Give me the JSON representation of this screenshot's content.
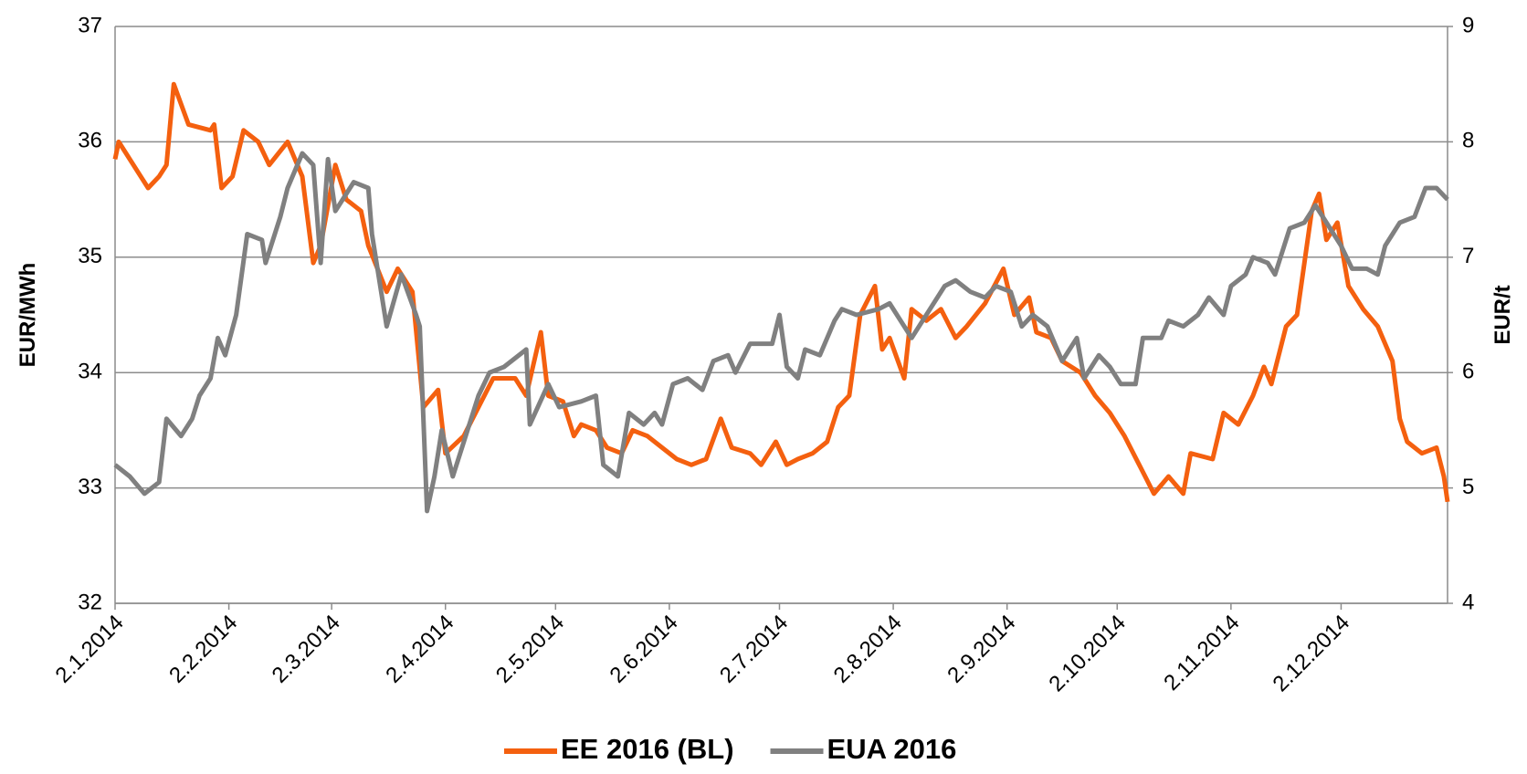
{
  "chart_data": {
    "type": "line",
    "y_label": "EUR/MWh",
    "y2_label": "EUR/t",
    "xlim": [
      "2014-01-02",
      "2014-12-31"
    ],
    "xticks": [
      {
        "value": "2014-01-02",
        "label": "2.1.2014"
      },
      {
        "value": "2014-02-02",
        "label": "2.2.2014"
      },
      {
        "value": "2014-03-02",
        "label": "2.3.2014"
      },
      {
        "value": "2014-04-02",
        "label": "2.4.2014"
      },
      {
        "value": "2014-05-02",
        "label": "2.5.2014"
      },
      {
        "value": "2014-06-02",
        "label": "2.6.2014"
      },
      {
        "value": "2014-07-02",
        "label": "2.7.2014"
      },
      {
        "value": "2014-08-02",
        "label": "2.8.2014"
      },
      {
        "value": "2014-09-02",
        "label": "2.9.2014"
      },
      {
        "value": "2014-10-02",
        "label": "2.10.2014"
      },
      {
        "value": "2014-11-02",
        "label": "2.11.2014"
      },
      {
        "value": "2014-12-02",
        "label": "2.12.2014"
      }
    ],
    "ylim": [
      32,
      37
    ],
    "yticks": [
      32,
      33,
      34,
      35,
      36,
      37
    ],
    "y2lim": [
      4,
      9
    ],
    "y2ticks": [
      4,
      5,
      6,
      7,
      8,
      9
    ],
    "grid": true,
    "legend": "bottom",
    "series": [
      {
        "name": "EE 2016 (BL)",
        "color": "#f4600f",
        "x": [
          "2014-01-02",
          "2014-01-03",
          "2014-01-09",
          "2014-01-11",
          "2014-01-14",
          "2014-01-16",
          "2014-01-18",
          "2014-01-22",
          "2014-01-28",
          "2014-01-29",
          "2014-01-31",
          "2014-02-03",
          "2014-02-06",
          "2014-02-10",
          "2014-02-13",
          "2014-02-18",
          "2014-02-22",
          "2014-02-25",
          "2014-02-27",
          "2014-03-03",
          "2014-03-06",
          "2014-03-10",
          "2014-03-12",
          "2014-03-17",
          "2014-03-20",
          "2014-03-24",
          "2014-03-27",
          "2014-03-31",
          "2014-04-02",
          "2014-04-07",
          "2014-04-11",
          "2014-04-15",
          "2014-04-21",
          "2014-04-24",
          "2014-04-28",
          "2014-04-30",
          "2014-05-04",
          "2014-05-07",
          "2014-05-09",
          "2014-05-13",
          "2014-05-16",
          "2014-05-20",
          "2014-05-23",
          "2014-05-27",
          "2014-05-31",
          "2014-06-04",
          "2014-06-08",
          "2014-06-12",
          "2014-06-16",
          "2014-06-19",
          "2014-06-24",
          "2014-06-27",
          "2014-07-01",
          "2014-07-04",
          "2014-07-07",
          "2014-07-11",
          "2014-07-15",
          "2014-07-18",
          "2014-07-21",
          "2014-07-24",
          "2014-07-28",
          "2014-07-30",
          "2014-08-01",
          "2014-08-05",
          "2014-08-07",
          "2014-08-11",
          "2014-08-15",
          "2014-08-19",
          "2014-08-22",
          "2014-08-27",
          "2014-09-01",
          "2014-09-04",
          "2014-09-08",
          "2014-09-10",
          "2014-09-14",
          "2014-09-17",
          "2014-09-22",
          "2014-09-26",
          "2014-09-30",
          "2014-10-04",
          "2014-10-08",
          "2014-10-12",
          "2014-10-16",
          "2014-10-20",
          "2014-10-22",
          "2014-10-28",
          "2014-10-31",
          "2014-11-04",
          "2014-11-08",
          "2014-11-11",
          "2014-11-13",
          "2014-11-17",
          "2014-11-20",
          "2014-11-24",
          "2014-11-26",
          "2014-11-28",
          "2014-12-01",
          "2014-12-04",
          "2014-12-08",
          "2014-12-12",
          "2014-12-16",
          "2014-12-18",
          "2014-12-20",
          "2014-12-24",
          "2014-12-28",
          "2014-12-30",
          "2014-12-31"
        ],
        "values": [
          35.85,
          36.0,
          35.7,
          35.6,
          35.7,
          35.8,
          36.5,
          36.15,
          36.1,
          36.15,
          35.6,
          35.7,
          36.1,
          36.0,
          35.8,
          36.0,
          35.7,
          34.95,
          35.1,
          35.8,
          35.5,
          35.4,
          35.1,
          34.7,
          34.9,
          34.7,
          33.7,
          33.85,
          33.3,
          33.45,
          33.7,
          33.95,
          33.95,
          33.8,
          34.35,
          33.8,
          33.75,
          33.45,
          33.55,
          33.5,
          33.35,
          33.3,
          33.5,
          33.45,
          33.35,
          33.25,
          33.2,
          33.25,
          33.6,
          33.35,
          33.3,
          33.2,
          33.4,
          33.2,
          33.25,
          33.3,
          33.4,
          33.7,
          33.8,
          34.5,
          34.75,
          34.2,
          34.3,
          33.95,
          34.55,
          34.45,
          34.55,
          34.3,
          34.4,
          34.6,
          34.9,
          34.5,
          34.65,
          34.35,
          34.3,
          34.1,
          34.0,
          33.8,
          33.65,
          33.45,
          33.2,
          32.95,
          33.1,
          32.95,
          33.3,
          33.25,
          33.65,
          33.55,
          33.8,
          34.05,
          33.9,
          34.4,
          34.5,
          35.4,
          35.55,
          35.15,
          35.3,
          34.75,
          34.55,
          34.4,
          34.1,
          33.6,
          33.4,
          33.3,
          33.35,
          33.1,
          32.88
        ]
      },
      {
        "name": "EUA 2016",
        "color": "#808080",
        "axis": "y2",
        "x": [
          "2014-01-02",
          "2014-01-06",
          "2014-01-10",
          "2014-01-14",
          "2014-01-16",
          "2014-01-20",
          "2014-01-23",
          "2014-01-25",
          "2014-01-28",
          "2014-01-30",
          "2014-02-01",
          "2014-02-04",
          "2014-02-07",
          "2014-02-11",
          "2014-02-12",
          "2014-02-16",
          "2014-02-18",
          "2014-02-22",
          "2014-02-25",
          "2014-02-27",
          "2014-03-01",
          "2014-03-03",
          "2014-03-08",
          "2014-03-12",
          "2014-03-13",
          "2014-03-17",
          "2014-03-21",
          "2014-03-25",
          "2014-03-26",
          "2014-03-28",
          "2014-03-30",
          "2014-04-01",
          "2014-04-04",
          "2014-04-08",
          "2014-04-11",
          "2014-04-14",
          "2014-04-18",
          "2014-04-24",
          "2014-04-25",
          "2014-04-30",
          "2014-05-03",
          "2014-05-09",
          "2014-05-13",
          "2014-05-15",
          "2014-05-19",
          "2014-05-22",
          "2014-05-26",
          "2014-05-29",
          "2014-05-31",
          "2014-06-03",
          "2014-06-07",
          "2014-06-11",
          "2014-06-14",
          "2014-06-18",
          "2014-06-20",
          "2014-06-24",
          "2014-06-30",
          "2014-07-02",
          "2014-07-04",
          "2014-07-07",
          "2014-07-09",
          "2014-07-13",
          "2014-07-17",
          "2014-07-19",
          "2014-07-23",
          "2014-07-29",
          "2014-08-01",
          "2014-08-07",
          "2014-08-12",
          "2014-08-16",
          "2014-08-19",
          "2014-08-23",
          "2014-08-27",
          "2014-08-30",
          "2014-09-03",
          "2014-09-06",
          "2014-09-09",
          "2014-09-13",
          "2014-09-17",
          "2014-09-21",
          "2014-09-23",
          "2014-09-27",
          "2014-09-30",
          "2014-10-03",
          "2014-10-07",
          "2014-10-09",
          "2014-10-14",
          "2014-10-16",
          "2014-10-20",
          "2014-10-24",
          "2014-10-27",
          "2014-10-31",
          "2014-11-02",
          "2014-11-06",
          "2014-11-08",
          "2014-11-12",
          "2014-11-14",
          "2014-11-18",
          "2014-11-22",
          "2014-11-25",
          "2014-11-28",
          "2014-12-02",
          "2014-12-05",
          "2014-12-09",
          "2014-12-12",
          "2014-12-14",
          "2014-12-18",
          "2014-12-22",
          "2014-12-25",
          "2014-12-28",
          "2014-12-31"
        ],
        "values": [
          5.2,
          5.1,
          4.95,
          5.05,
          5.6,
          5.45,
          5.6,
          5.8,
          5.95,
          6.3,
          6.15,
          6.5,
          7.2,
          7.15,
          6.95,
          7.35,
          7.6,
          7.9,
          7.8,
          6.95,
          7.85,
          7.4,
          7.65,
          7.6,
          7.2,
          6.4,
          6.85,
          6.5,
          6.4,
          4.8,
          5.1,
          5.5,
          5.1,
          5.5,
          5.8,
          6.0,
          6.05,
          6.2,
          5.55,
          5.9,
          5.7,
          5.75,
          5.8,
          5.2,
          5.1,
          5.65,
          5.55,
          5.65,
          5.55,
          5.9,
          5.95,
          5.85,
          6.1,
          6.15,
          6.0,
          6.25,
          6.25,
          6.5,
          6.05,
          5.95,
          6.2,
          6.15,
          6.45,
          6.55,
          6.5,
          6.55,
          6.6,
          6.3,
          6.55,
          6.75,
          6.8,
          6.7,
          6.65,
          6.75,
          6.7,
          6.4,
          6.5,
          6.4,
          6.1,
          6.3,
          5.95,
          6.15,
          6.05,
          5.9,
          5.9,
          6.3,
          6.3,
          6.45,
          6.4,
          6.5,
          6.65,
          6.5,
          6.75,
          6.85,
          7.0,
          6.95,
          6.85,
          7.25,
          7.3,
          7.45,
          7.3,
          7.1,
          6.9,
          6.9,
          6.85,
          7.1,
          7.3,
          7.35,
          7.6,
          7.6,
          7.5
        ]
      }
    ]
  }
}
